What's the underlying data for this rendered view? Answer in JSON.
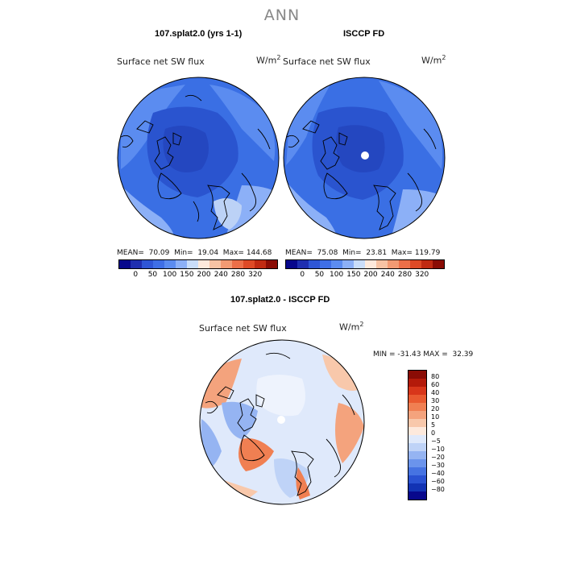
{
  "figure": {
    "title": "ANN"
  },
  "panels": [
    {
      "title": "107.splat2.0 (yrs 1-1)",
      "variable": "Surface net SW flux",
      "units": "W/m",
      "units_exp": "2",
      "stats": "MEAN=  70.09  Min=  19.04  Max= 144.68"
    },
    {
      "title": "ISCCP FD",
      "variable": "Surface net SW flux",
      "units": "W/m",
      "units_exp": "2",
      "stats": "MEAN=  75.08  Min=  23.81  Max= 119.79"
    },
    {
      "title": "107.splat2.0 - ISCCP FD",
      "variable": "Surface net SW flux",
      "units": "W/m",
      "units_exp": "2",
      "stats": "MIN = -31.43 MAX =  32.39"
    }
  ],
  "colorbar_top": {
    "colors": [
      "#08088c",
      "#1f2fb0",
      "#2f56d6",
      "#3f6fe6",
      "#5b8cf0",
      "#8cb0f7",
      "#c9ddfa",
      "#fde9dc",
      "#f7c3a4",
      "#f29a73",
      "#ec6f48",
      "#de4a26",
      "#c02a12",
      "#8a0c05"
    ],
    "labels": [
      "0",
      "50",
      "100",
      "150",
      "200",
      "240",
      "280",
      "320"
    ]
  },
  "colorbar_diff": {
    "colors": [
      "#8a0c05",
      "#b41a0a",
      "#d8361a",
      "#e95a30",
      "#f07f52",
      "#f4a37d",
      "#f8c8ab",
      "#fde9dc",
      "#dfe9fb",
      "#bfd3f7",
      "#95b4f2",
      "#6b94ec",
      "#4673e2",
      "#2a52d2",
      "#1233b4",
      "#08088c"
    ],
    "labels": [
      "80",
      "60",
      "40",
      "30",
      "20",
      "10",
      "5",
      "0",
      "−5",
      "−10",
      "−20",
      "−30",
      "−40",
      "−60",
      "−80"
    ]
  },
  "colors": {
    "ocean_blue": "#3a6fe4",
    "deep_blue": "#2a54cf",
    "pale_blue": "#bcd2f6",
    "land_line": "#000000",
    "diff_white": "#eef3fd",
    "diff_red": "#f08a62"
  }
}
